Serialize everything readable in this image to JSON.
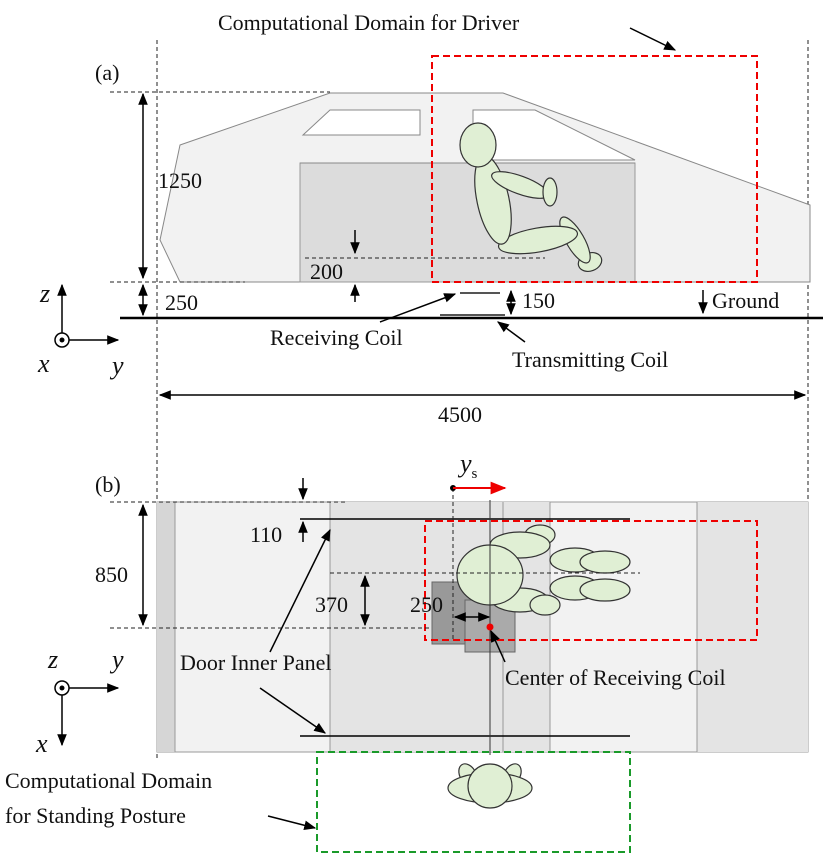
{
  "panel_a": {
    "label": "(a)",
    "domain_label": "Computational Domain for Driver",
    "dims": {
      "height": "1250",
      "floor": "200",
      "clearance": "250",
      "gap": "150",
      "length": "4500"
    },
    "ground": "Ground",
    "receiving_coil": "Receiving Coil",
    "transmitting_coil": "Transmitting Coil",
    "axes": {
      "z": "z",
      "x": "x",
      "y": "y"
    }
  },
  "panel_b": {
    "label": "(b)",
    "ys": {
      "symbol": "y",
      "subscript": "s"
    },
    "dims": {
      "offset": "110",
      "width": "850",
      "center": "370",
      "shift": "250"
    },
    "door_panel": "Door Inner Panel",
    "coil_center": "Center of Receiving Coil",
    "standing_domain": [
      "Computational Domain",
      "for Standing Posture"
    ],
    "axes": {
      "z": "z",
      "y": "y",
      "x": "x"
    }
  }
}
